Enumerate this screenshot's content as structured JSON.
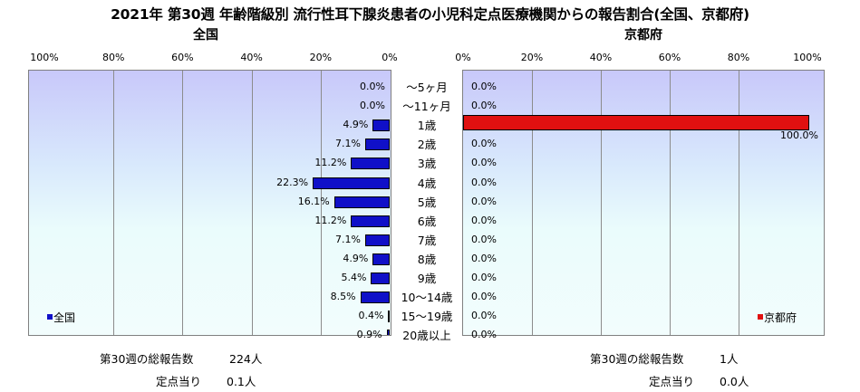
{
  "title": "2021年 第30週 年齢階級別 流行性耳下腺炎患者の小児科定点医療機関からの報告割合(全国、京都府)",
  "left_panel_title": "全国",
  "right_panel_title": "京都府",
  "chart_data": [
    {
      "type": "bar",
      "orientation": "horizontal",
      "direction": "right-to-left",
      "title": "全国",
      "categories": [
        "～5ヶ月",
        "～11ヶ月",
        "1歳",
        "2歳",
        "3歳",
        "4歳",
        "5歳",
        "6歳",
        "7歳",
        "8歳",
        "9歳",
        "10～14歳",
        "15～19歳",
        "20歳以上"
      ],
      "series": [
        {
          "name": "全国",
          "color": "#1010c8",
          "values": [
            0.0,
            0.0,
            4.9,
            7.1,
            11.2,
            22.3,
            16.1,
            11.2,
            7.1,
            4.9,
            5.4,
            8.5,
            0.4,
            0.9
          ],
          "labels": [
            "0.0%",
            "0.0%",
            "4.9%",
            "7.1%",
            "11.2%",
            "22.3%",
            "16.1%",
            "11.2%",
            "7.1%",
            "4.9%",
            "5.4%",
            "8.5%",
            "0.4%",
            "0.9%"
          ]
        }
      ],
      "xlim": [
        0,
        100
      ],
      "xticks": [
        "100%",
        "80%",
        "60%",
        "40%",
        "20%",
        "0%"
      ],
      "grid": true,
      "legend": "bottom-left"
    },
    {
      "type": "bar",
      "orientation": "horizontal",
      "direction": "left-to-right",
      "title": "京都府",
      "categories": [
        "～5ヶ月",
        "～11ヶ月",
        "1歳",
        "2歳",
        "3歳",
        "4歳",
        "5歳",
        "6歳",
        "7歳",
        "8歳",
        "9歳",
        "10～14歳",
        "15～19歳",
        "20歳以上"
      ],
      "series": [
        {
          "name": "京都府",
          "color": "#e01010",
          "values": [
            0.0,
            0.0,
            100.0,
            0.0,
            0.0,
            0.0,
            0.0,
            0.0,
            0.0,
            0.0,
            0.0,
            0.0,
            0.0,
            0.0
          ],
          "labels": [
            "0.0%",
            "0.0%",
            "100.0%",
            "0.0%",
            "0.0%",
            "0.0%",
            "0.0%",
            "0.0%",
            "0.0%",
            "0.0%",
            "0.0%",
            "0.0%",
            "0.0%",
            "0.0%"
          ]
        }
      ],
      "xlim": [
        0,
        100
      ],
      "xticks": [
        "0%",
        "20%",
        "40%",
        "60%",
        "80%",
        "100%"
      ],
      "grid": true,
      "legend": "bottom-right"
    }
  ],
  "summary": {
    "national": {
      "total_label": "第30週の総報告数",
      "total_value": "224人",
      "per_site_label": "定点当り",
      "per_site_value": "0.1人"
    },
    "kyoto": {
      "total_label": "第30週の総報告数",
      "total_value": "1人",
      "per_site_label": "定点当り",
      "per_site_value": "0.0人"
    }
  }
}
